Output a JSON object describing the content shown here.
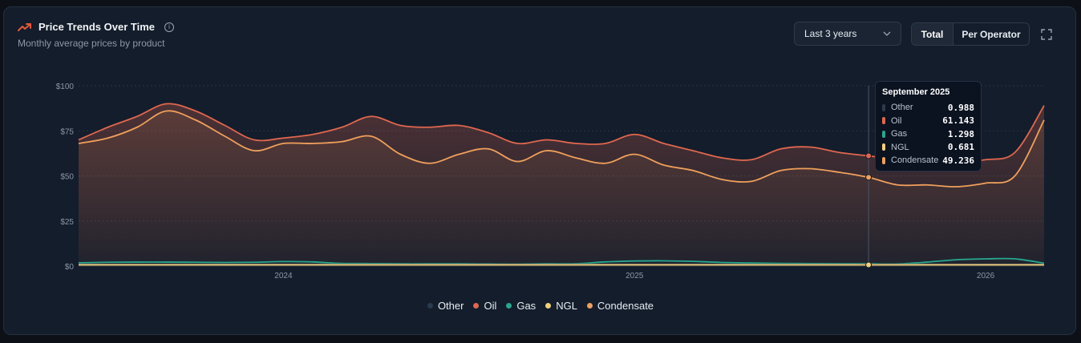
{
  "header": {
    "title": "Price Trends Over Time",
    "subtitle": "Monthly average prices by product",
    "range_value": "Last 3 years",
    "toggle_total": "Total",
    "toggle_per_operator": "Per Operator"
  },
  "colors": {
    "accent": "#e8583a",
    "other": "#2b3b4e",
    "oil": "#e0674f",
    "gas": "#26a88f",
    "ngl": "#f2d07a",
    "condensate": "#f0a05c"
  },
  "tooltip": {
    "title": "September 2025",
    "rows": [
      {
        "name": "Other",
        "value": "0.988"
      },
      {
        "name": "Oil",
        "value": "61.143"
      },
      {
        "name": "Gas",
        "value": "1.298"
      },
      {
        "name": "NGL",
        "value": "0.681"
      },
      {
        "name": "Condensate",
        "value": "49.236"
      }
    ]
  },
  "chart_data": {
    "type": "area",
    "title": "Price Trends Over Time",
    "subtitle": "Monthly average prices by product",
    "x_ticks": [
      "2024",
      "2025",
      "2026"
    ],
    "y_ticks": [
      "$0",
      "$25",
      "$50",
      "$75",
      "$100"
    ],
    "ylim": [
      0,
      100
    ],
    "grid": true,
    "legend_position": "bottom",
    "x": [
      "2023-06",
      "2023-07",
      "2023-08",
      "2023-09",
      "2023-10",
      "2023-11",
      "2023-12",
      "2024-01",
      "2024-02",
      "2024-03",
      "2024-04",
      "2024-05",
      "2024-06",
      "2024-07",
      "2024-08",
      "2024-09",
      "2024-10",
      "2024-11",
      "2024-12",
      "2025-01",
      "2025-02",
      "2025-03",
      "2025-04",
      "2025-05",
      "2025-06",
      "2025-07",
      "2025-08",
      "2025-09",
      "2025-10",
      "2025-11",
      "2025-12",
      "2026-01",
      "2026-02",
      "2026-03"
    ],
    "series": [
      {
        "name": "Other",
        "values": [
          1.0,
          1.0,
          1.0,
          1.0,
          1.0,
          1.0,
          1.0,
          1.0,
          1.0,
          1.0,
          1.0,
          1.0,
          1.0,
          1.0,
          1.0,
          1.0,
          1.0,
          1.0,
          1.0,
          1.0,
          1.0,
          1.0,
          1.0,
          1.0,
          1.0,
          1.0,
          1.0,
          0.988,
          1.0,
          1.0,
          1.0,
          1.0,
          1.0,
          1.0
        ]
      },
      {
        "name": "Oil",
        "values": [
          70,
          77,
          83,
          90,
          86,
          78,
          70,
          71,
          73,
          77,
          83,
          78,
          77,
          78,
          74,
          68,
          70,
          68,
          68,
          73,
          68,
          64,
          60,
          59,
          65,
          66,
          63,
          61.1,
          59,
          58,
          58,
          59,
          63,
          89
        ]
      },
      {
        "name": "Gas",
        "values": [
          1.8,
          2.1,
          2.2,
          2.2,
          2.1,
          2.0,
          2.1,
          2.5,
          2.3,
          1.5,
          1.4,
          1.3,
          1.3,
          1.3,
          1.2,
          1.1,
          1.3,
          1.3,
          2.3,
          2.8,
          2.9,
          2.6,
          2.0,
          1.7,
          1.5,
          1.4,
          1.3,
          1.298,
          1.2,
          2.2,
          3.5,
          4.0,
          4.0,
          1.6
        ]
      },
      {
        "name": "NGL",
        "values": [
          0.7,
          0.7,
          0.7,
          0.7,
          0.7,
          0.7,
          0.7,
          0.7,
          0.7,
          0.7,
          0.7,
          0.7,
          0.7,
          0.7,
          0.7,
          0.7,
          0.7,
          0.7,
          0.7,
          0.7,
          0.7,
          0.7,
          0.7,
          0.7,
          0.7,
          0.7,
          0.7,
          0.681,
          0.7,
          0.7,
          0.7,
          0.7,
          0.7,
          0.7
        ]
      },
      {
        "name": "Condensate",
        "values": [
          68,
          71,
          77,
          86,
          81,
          72,
          64,
          68,
          68,
          69,
          72,
          62,
          57,
          62,
          65,
          58,
          64,
          60,
          57,
          62,
          56,
          53,
          48,
          47,
          53,
          54,
          52,
          49.2,
          45,
          45,
          44,
          46,
          50,
          81
        ]
      }
    ]
  }
}
